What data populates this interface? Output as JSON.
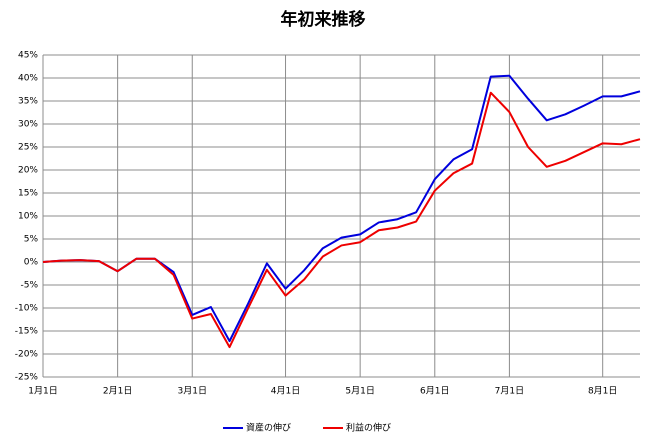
{
  "chart_data": {
    "type": "line",
    "title": "年初来推移",
    "categories": [
      "1月1日",
      null,
      null,
      null,
      "2月1日",
      null,
      null,
      null,
      "3月1日",
      null,
      null,
      null,
      null,
      "4月1日",
      null,
      null,
      null,
      "5月1日",
      null,
      null,
      null,
      "6月1日",
      null,
      null,
      null,
      "7月1日",
      null,
      null,
      null,
      null,
      "8月1日",
      null,
      null
    ],
    "series": [
      {
        "name": "資産の伸び",
        "color": "#0000dd",
        "values": [
          0,
          0.3,
          0.4,
          0.2,
          -2,
          0.7,
          0.7,
          -2.2,
          -11.5,
          -9.8,
          -17.2,
          -9,
          -0.3,
          -5.8,
          -1.8,
          3,
          5.3,
          6,
          8.6,
          9.3,
          10.8,
          18,
          22.3,
          24.5,
          40.3,
          40.5,
          35.5,
          30.8,
          32.1,
          34,
          36,
          36,
          37.1
        ]
      },
      {
        "name": "利益の伸び",
        "color": "#ee0000",
        "values": [
          0,
          0.3,
          0.4,
          0.2,
          -2,
          0.7,
          0.7,
          -2.8,
          -12.3,
          -11.3,
          -18.5,
          -10,
          -1.7,
          -7.3,
          -3.8,
          1.2,
          3.6,
          4.3,
          6.9,
          7.5,
          8.8,
          15.5,
          19.3,
          21.4,
          36.8,
          32.6,
          25,
          20.7,
          22,
          23.9,
          25.8,
          25.6,
          26.7
        ]
      }
    ],
    "ylim": [
      -25,
      45
    ],
    "yticks": [
      {
        "value": -25,
        "label": "-25%"
      },
      {
        "value": -20,
        "label": "-20%"
      },
      {
        "value": -15,
        "label": "-15%"
      },
      {
        "value": -10,
        "label": "-10%"
      },
      {
        "value": -5,
        "label": "-5%"
      },
      {
        "value": 0,
        "label": "0%"
      },
      {
        "value": 5,
        "label": "5%"
      },
      {
        "value": 10,
        "label": "10%"
      },
      {
        "value": 15,
        "label": "15%"
      },
      {
        "value": 20,
        "label": "20%"
      },
      {
        "value": 25,
        "label": "25%"
      },
      {
        "value": 30,
        "label": "30%"
      },
      {
        "value": 35,
        "label": "35%"
      },
      {
        "value": 40,
        "label": "40%"
      },
      {
        "value": 45,
        "label": "45%"
      }
    ],
    "grid": true,
    "legend": "bottom"
  }
}
